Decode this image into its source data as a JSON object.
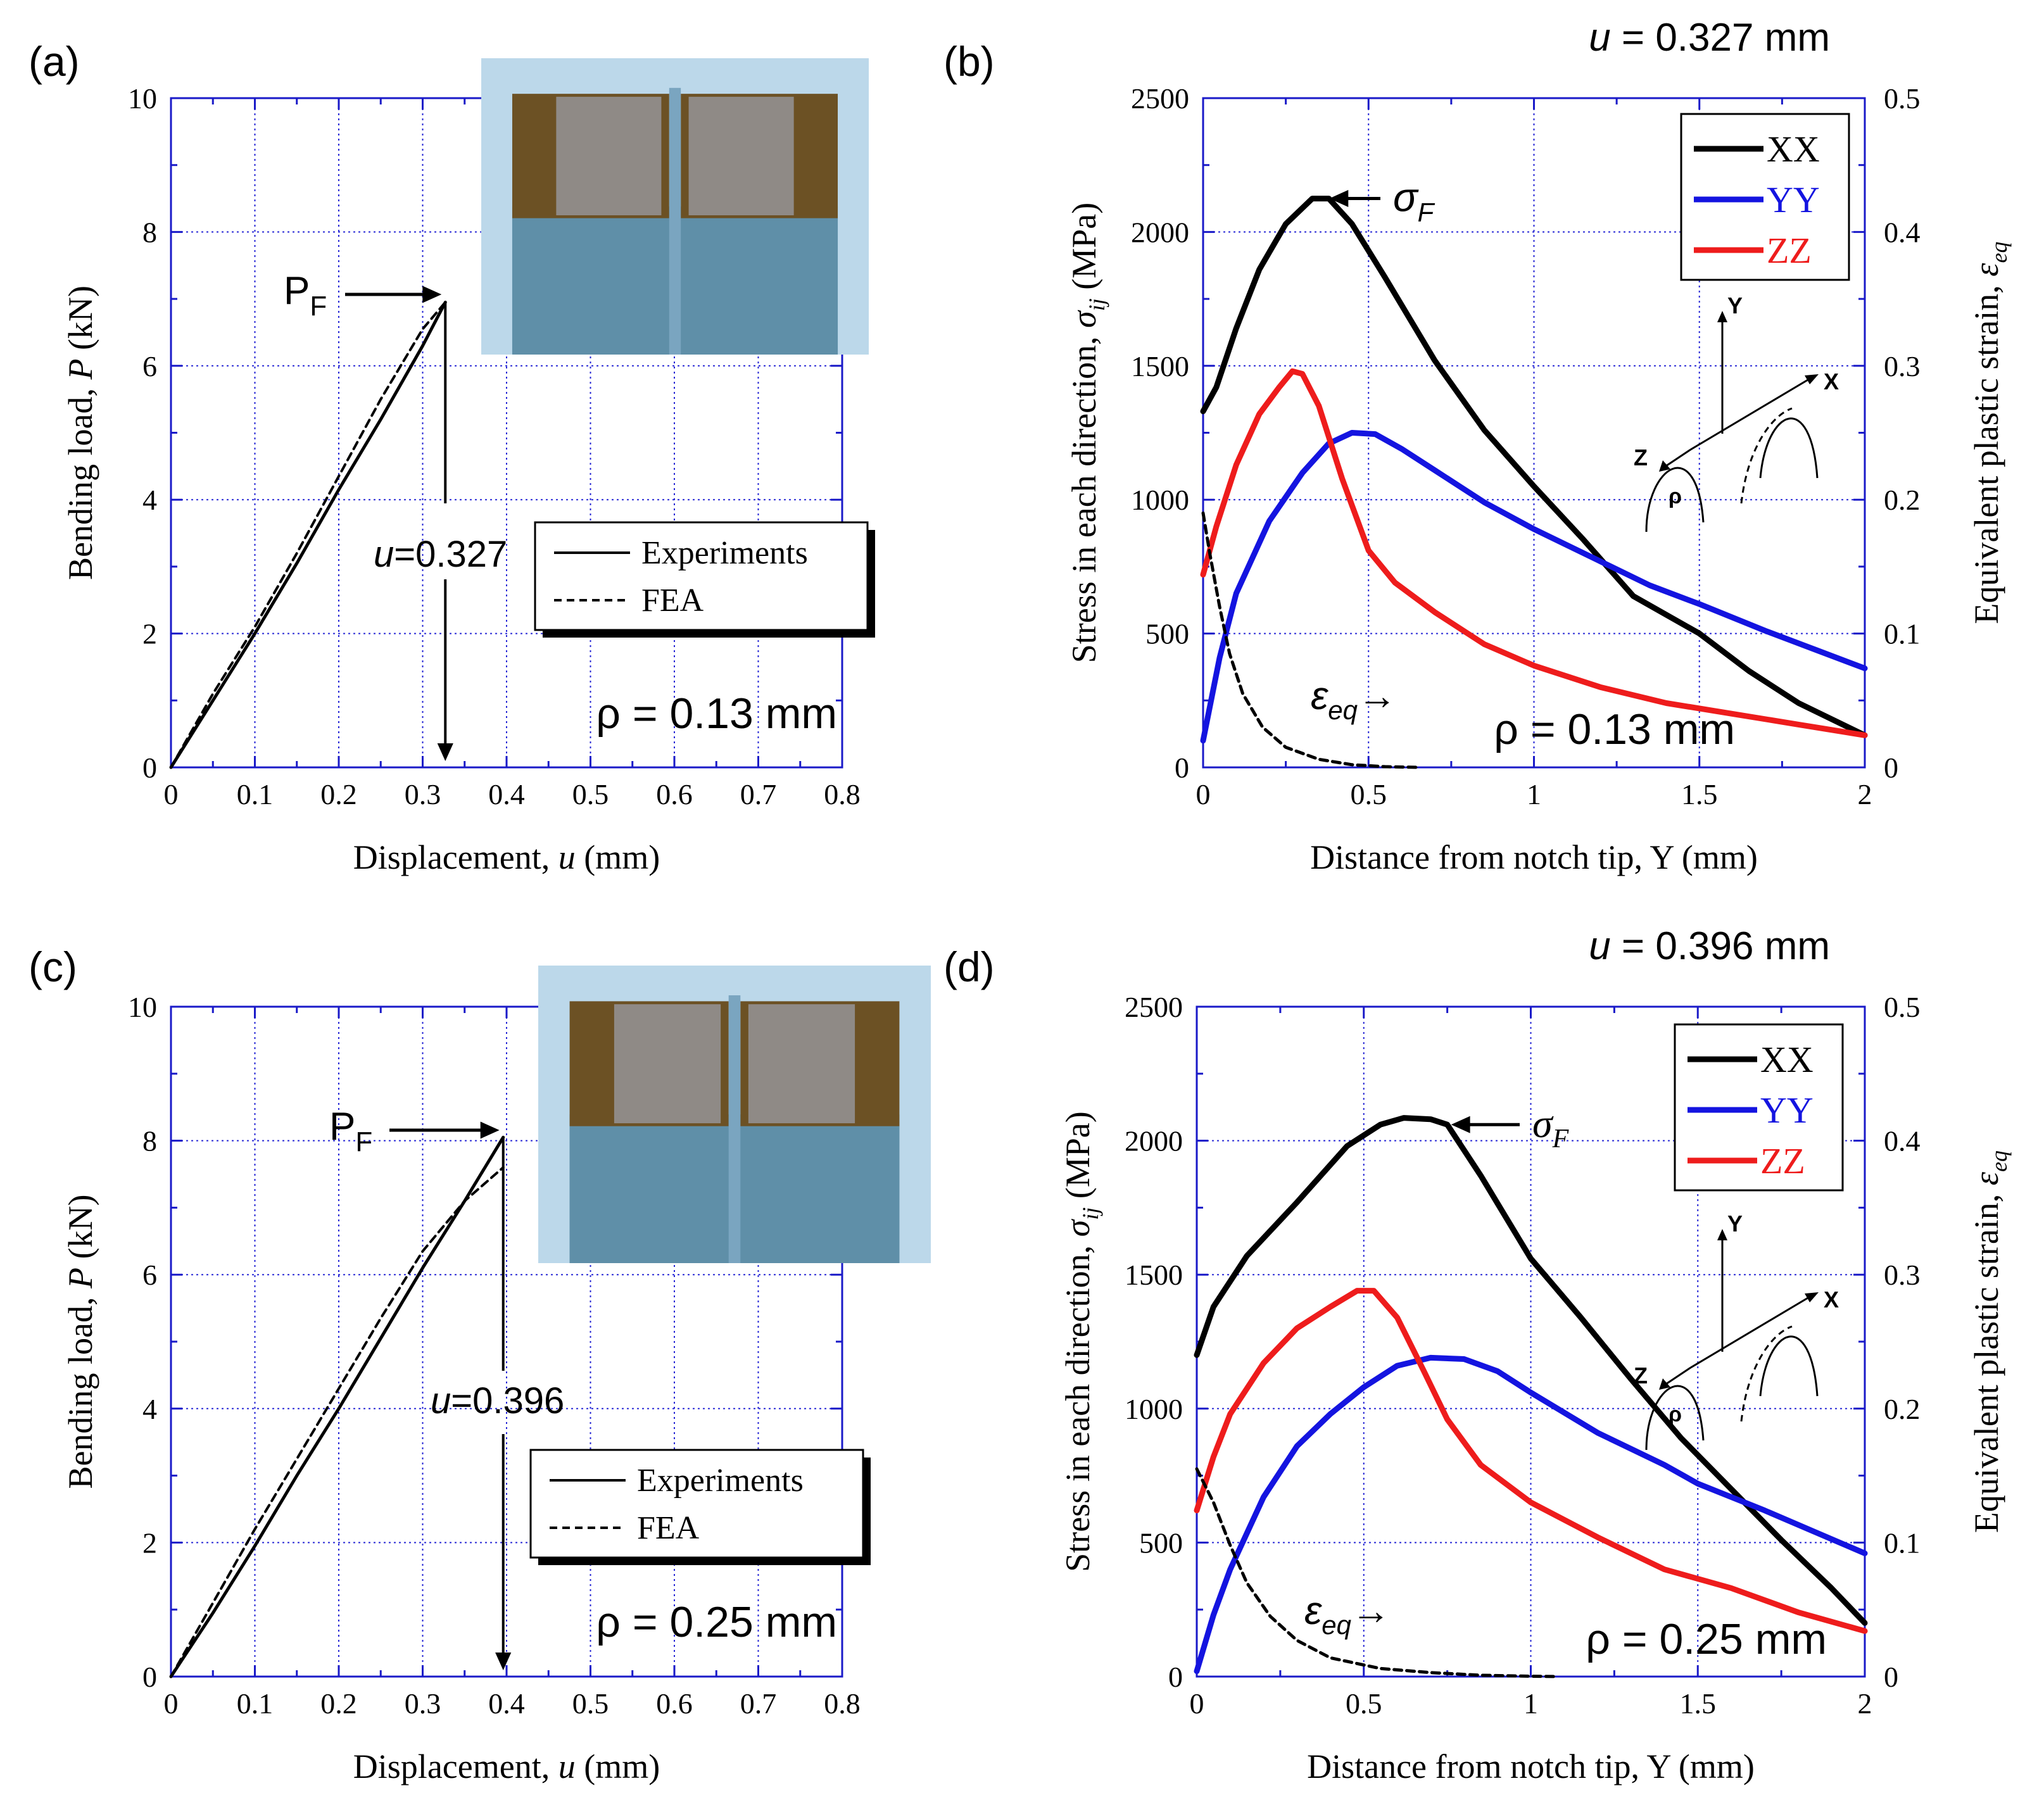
{
  "colors": {
    "grid": "#2a2ad6",
    "axis": "#1a1ac8",
    "xx": "#000000",
    "yy": "#1414e0",
    "zz": "#ee1c1c",
    "eq": "#000000",
    "photo_bg": "#bcd8ea",
    "photo_metal": "#6c5124",
    "photo_fracture": "#8f8a86",
    "photo_base": "#5f8fa8"
  },
  "chart_data": [
    {
      "id": "a",
      "type": "line",
      "panel_label": "(a)",
      "xlabel": "Displacement, u (mm)",
      "ylabel": "Bending load, P (kN)",
      "xlim": [
        0,
        0.8
      ],
      "ylim": [
        0,
        10
      ],
      "xticks": [
        "0",
        "0.1",
        "0.2",
        "0.3",
        "0.4",
        "0.5",
        "0.6",
        "0.7",
        "0.8"
      ],
      "yticks": [
        "0",
        "2",
        "4",
        "6",
        "8",
        "10"
      ],
      "grid": true,
      "legend_position": "middle-right",
      "legend": [
        "Experiments",
        "FEA"
      ],
      "series": [
        {
          "name": "Experiments",
          "style": "solid",
          "x": [
            0,
            0.05,
            0.1,
            0.15,
            0.2,
            0.25,
            0.3,
            0.327
          ],
          "y": [
            0,
            1.0,
            2.0,
            3.05,
            4.15,
            5.2,
            6.3,
            6.95
          ]
        },
        {
          "name": "FEA",
          "style": "dashed",
          "x": [
            0,
            0.05,
            0.1,
            0.15,
            0.2,
            0.25,
            0.3,
            0.327
          ],
          "y": [
            0,
            1.1,
            2.1,
            3.2,
            4.35,
            5.5,
            6.55,
            6.95
          ]
        }
      ],
      "annotations": {
        "pf": "P",
        "pf_sub": "F",
        "pf_value": 6.95,
        "u_label_prefix": "u",
        "u_label_value": "=0.327",
        "u_value": 0.327,
        "rho": "ρ = 0.13 mm"
      }
    },
    {
      "id": "b",
      "type": "line",
      "panel_label": "(b)",
      "top_title_prefix": "u",
      "top_title_value": " = 0.327 mm",
      "xlabel": "Distance from notch tip, Y (mm)",
      "ylabel": "Stress in each direction, σij (MPa)",
      "ylabel_text": "Stress in each direction,",
      "ylabel_sym": "σ",
      "ylabel_sub": "ij",
      "ylabel_unit": "(MPa)",
      "y2label_text": "Equivalent plastic strain,",
      "y2label_sym": "ε",
      "y2label_sub": "eq",
      "xlim": [
        0,
        2
      ],
      "ylim": [
        0,
        2500
      ],
      "y2lim": [
        0,
        0.5
      ],
      "xticks": [
        "0",
        "0.5",
        "1",
        "1.5",
        "2"
      ],
      "yticks": [
        "0",
        "500",
        "1000",
        "1500",
        "2000",
        "2500"
      ],
      "y2ticks": [
        "0",
        "0.1",
        "0.2",
        "0.3",
        "0.4",
        "0.5"
      ],
      "grid": true,
      "legend_position": "top-right",
      "legend": [
        "XX",
        "YY",
        "ZZ"
      ],
      "series": [
        {
          "name": "XX",
          "axis": "left",
          "x": [
            0,
            0.04,
            0.1,
            0.17,
            0.25,
            0.33,
            0.38,
            0.45,
            0.55,
            0.7,
            0.85,
            1.0,
            1.15,
            1.3,
            1.5,
            1.65,
            1.8,
            2.0
          ],
          "y": [
            1330,
            1420,
            1640,
            1860,
            2030,
            2125,
            2125,
            2030,
            1830,
            1520,
            1260,
            1050,
            850,
            640,
            500,
            360,
            240,
            120
          ]
        },
        {
          "name": "YY",
          "axis": "left",
          "x": [
            0,
            0.05,
            0.1,
            0.2,
            0.3,
            0.38,
            0.45,
            0.52,
            0.6,
            0.7,
            0.85,
            1.0,
            1.2,
            1.35,
            1.5,
            1.7,
            1.85,
            2.0
          ],
          "y": [
            100,
            410,
            650,
            920,
            1100,
            1210,
            1250,
            1245,
            1190,
            1110,
            990,
            890,
            770,
            680,
            610,
            510,
            440,
            370
          ]
        },
        {
          "name": "ZZ",
          "axis": "left",
          "x": [
            0,
            0.04,
            0.1,
            0.17,
            0.23,
            0.27,
            0.3,
            0.35,
            0.42,
            0.5,
            0.58,
            0.7,
            0.85,
            1.0,
            1.2,
            1.4,
            1.6,
            1.8,
            2.0
          ],
          "y": [
            720,
            900,
            1130,
            1320,
            1420,
            1480,
            1470,
            1350,
            1080,
            810,
            690,
            580,
            460,
            380,
            300,
            240,
            200,
            160,
            120
          ]
        },
        {
          "name": "eq",
          "axis": "right",
          "style": "dashed",
          "x": [
            0,
            0.02,
            0.05,
            0.08,
            0.12,
            0.18,
            0.25,
            0.35,
            0.45,
            0.55,
            0.65
          ],
          "y": [
            0.19,
            0.16,
            0.12,
            0.085,
            0.055,
            0.03,
            0.015,
            0.006,
            0.002,
            0.0005,
            0
          ]
        }
      ],
      "annotations": {
        "sigma": "σ",
        "sigma_sub": "F",
        "sigma_x": 0.37,
        "sigma_y": 2125,
        "eq_sym": "ε",
        "eq_sub": "eq",
        "eq_arrow": "→",
        "rho": "ρ = 0.13 mm"
      },
      "inset_labels": {
        "y": "Y",
        "x": "X",
        "z": "Z",
        "rho": "ρ"
      }
    },
    {
      "id": "c",
      "type": "line",
      "panel_label": "(c)",
      "xlabel": "Displacement, u (mm)",
      "ylabel": "Bending load, P (kN)",
      "xlim": [
        0,
        0.8
      ],
      "ylim": [
        0,
        10
      ],
      "xticks": [
        "0",
        "0.1",
        "0.2",
        "0.3",
        "0.4",
        "0.5",
        "0.6",
        "0.7",
        "0.8"
      ],
      "yticks": [
        "0",
        "2",
        "4",
        "6",
        "8",
        "10"
      ],
      "grid": true,
      "legend_position": "middle-right",
      "legend": [
        "Experiments",
        "FEA"
      ],
      "series": [
        {
          "name": "Experiments",
          "style": "solid",
          "x": [
            0,
            0.05,
            0.1,
            0.15,
            0.2,
            0.25,
            0.3,
            0.35,
            0.396
          ],
          "y": [
            0,
            0.95,
            1.95,
            3.0,
            4.0,
            5.05,
            6.1,
            7.1,
            8.05
          ]
        },
        {
          "name": "FEA",
          "style": "dashed",
          "x": [
            0,
            0.05,
            0.1,
            0.15,
            0.2,
            0.25,
            0.3,
            0.35,
            0.396
          ],
          "y": [
            0,
            1.1,
            2.2,
            3.25,
            4.3,
            5.35,
            6.35,
            7.1,
            7.6
          ]
        }
      ],
      "annotations": {
        "pf": "P",
        "pf_sub": "F",
        "pf_value": 8.05,
        "u_label_prefix": "u",
        "u_label_value": "=0.396",
        "u_value": 0.396,
        "rho": "ρ = 0.25 mm"
      }
    },
    {
      "id": "d",
      "type": "line",
      "panel_label": "(d)",
      "top_title_prefix": "u",
      "top_title_value": " = 0.396 mm",
      "xlabel": "Distance from notch tip, Y (mm)",
      "ylabel": "Stress in each direction, σij (MPa)",
      "ylabel_text": "Stress in each direction,",
      "ylabel_sym": "σ",
      "ylabel_sub": "ij",
      "ylabel_unit": "(MPa)",
      "y2label_text": "Equivalent plastic strain,",
      "y2label_sym": "ε",
      "y2label_sub": "eq",
      "xlim": [
        0,
        2
      ],
      "ylim": [
        0,
        2500
      ],
      "y2lim": [
        0,
        0.5
      ],
      "xticks": [
        "0",
        "0.5",
        "1",
        "1.5",
        "2"
      ],
      "yticks": [
        "0",
        "500",
        "1000",
        "1500",
        "2000",
        "2500"
      ],
      "y2ticks": [
        "0",
        "0.1",
        "0.2",
        "0.3",
        "0.4",
        "0.5"
      ],
      "grid": true,
      "legend_position": "top-right",
      "legend": [
        "XX",
        "YY",
        "ZZ"
      ],
      "series": [
        {
          "name": "XX",
          "axis": "left",
          "x": [
            0,
            0.05,
            0.15,
            0.3,
            0.45,
            0.55,
            0.62,
            0.7,
            0.75,
            0.85,
            1.0,
            1.15,
            1.3,
            1.45,
            1.6,
            1.75,
            1.9,
            2.0
          ],
          "y": [
            1200,
            1380,
            1570,
            1770,
            1980,
            2060,
            2085,
            2080,
            2060,
            1870,
            1560,
            1340,
            1110,
            890,
            700,
            510,
            330,
            200
          ]
        },
        {
          "name": "YY",
          "axis": "left",
          "x": [
            0,
            0.05,
            0.1,
            0.2,
            0.3,
            0.4,
            0.5,
            0.6,
            0.7,
            0.8,
            0.9,
            1.0,
            1.2,
            1.4,
            1.5,
            1.7,
            1.85,
            2.0
          ],
          "y": [
            20,
            230,
            400,
            670,
            860,
            980,
            1080,
            1160,
            1190,
            1185,
            1140,
            1060,
            910,
            790,
            720,
            620,
            540,
            460
          ]
        },
        {
          "name": "ZZ",
          "axis": "left",
          "x": [
            0,
            0.05,
            0.1,
            0.2,
            0.3,
            0.4,
            0.48,
            0.53,
            0.6,
            0.68,
            0.75,
            0.85,
            1.0,
            1.2,
            1.4,
            1.6,
            1.8,
            2.0
          ],
          "y": [
            620,
            820,
            980,
            1170,
            1300,
            1380,
            1440,
            1440,
            1340,
            1140,
            960,
            790,
            650,
            520,
            400,
            330,
            240,
            170
          ]
        },
        {
          "name": "eq",
          "axis": "right",
          "style": "dashed",
          "x": [
            0,
            0.05,
            0.1,
            0.15,
            0.22,
            0.3,
            0.4,
            0.55,
            0.7,
            0.85,
            1.0,
            1.08
          ],
          "y": [
            0.155,
            0.13,
            0.098,
            0.07,
            0.045,
            0.027,
            0.014,
            0.006,
            0.003,
            0.001,
            0.0003,
            0
          ]
        }
      ],
      "annotations": {
        "sigma": "σ",
        "sigma_sub": "F",
        "sigma_x": 0.75,
        "sigma_y": 2060,
        "eq_sym": "ε",
        "eq_sub": "eq",
        "eq_arrow": "→",
        "rho": "ρ = 0.25 mm"
      },
      "inset_labels": {
        "y": "Y",
        "x": "X",
        "z": "Z",
        "rho": "ρ"
      }
    }
  ]
}
